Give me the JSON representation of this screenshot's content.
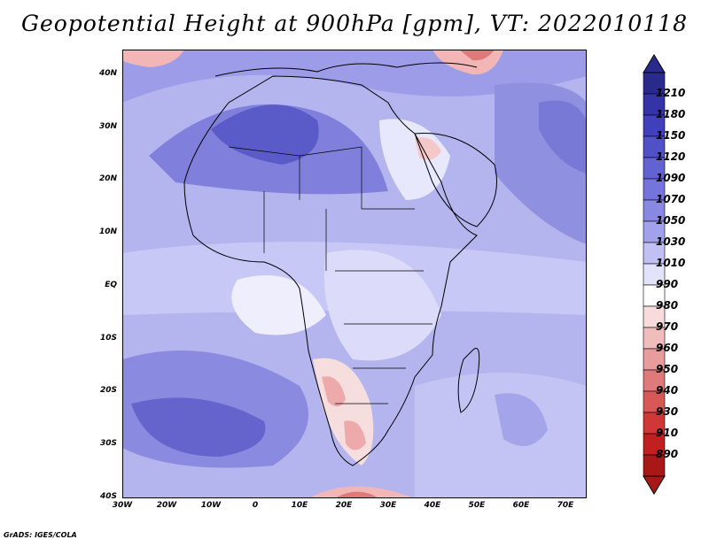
{
  "title": "Geopotential Height at 900hPa [gpm], VT: 2022010118",
  "credit": "GrADS: IGES/COLA",
  "lat_ticks": [
    "40N",
    "30N",
    "20N",
    "10N",
    "EQ",
    "10S",
    "20S",
    "30S",
    "40S"
  ],
  "lon_ticks": [
    "30W",
    "20W",
    "10W",
    "0",
    "10E",
    "20E",
    "30E",
    "40E",
    "50E",
    "60E",
    "70E"
  ],
  "colorbar": {
    "labels": [
      "1210",
      "1180",
      "1150",
      "1120",
      "1090",
      "1070",
      "1050",
      "1030",
      "1010",
      "990",
      "980",
      "970",
      "960",
      "950",
      "940",
      "930",
      "910",
      "890"
    ],
    "colors": [
      "#2a2a8c",
      "#3434a8",
      "#4040bd",
      "#5050c9",
      "#6262d3",
      "#7474dc",
      "#8989e4",
      "#a2a2ec",
      "#c0c0f4",
      "#e2e2fb",
      "#ffffff",
      "#f8dcdc",
      "#f0bcbc",
      "#e89c9c",
      "#e07a7a",
      "#d85858",
      "#d03838",
      "#c02020",
      "#a81818"
    ]
  }
}
